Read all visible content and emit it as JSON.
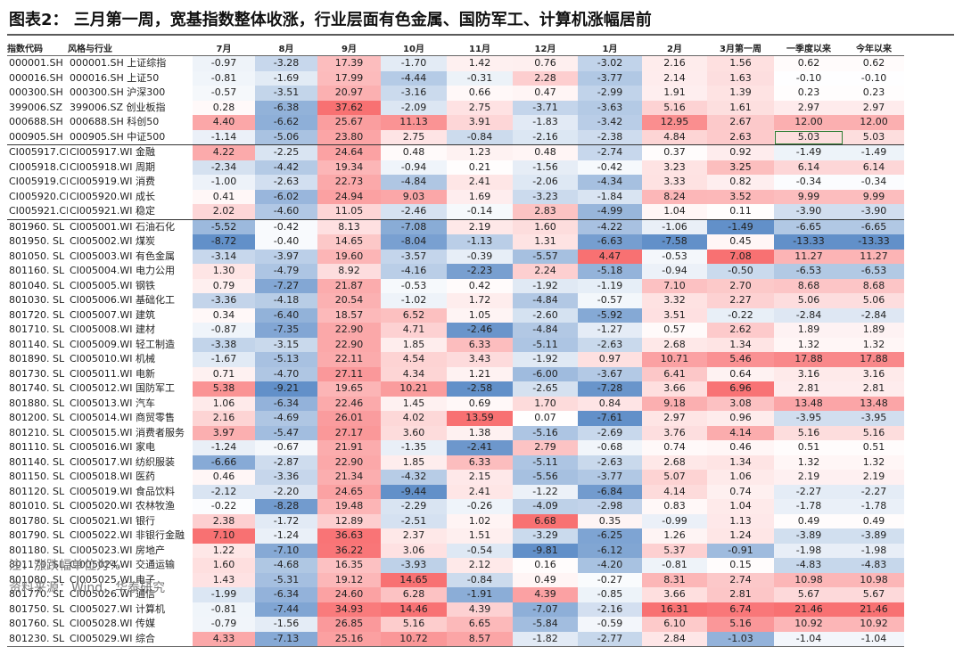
{
  "title": "图表2：  三月第一周，宽基指数整体收涨，行业层面有色金属、国防军工、计算机涨幅居前",
  "headers": [
    "指数代码",
    "风格与行业",
    "7月",
    "8月",
    "9月",
    "10月",
    "11月",
    "12月",
    "1月",
    "2月",
    "3月第一周",
    "一季度以来",
    "今年以来"
  ],
  "rows": [
    {
      "code": "000001.SH",
      "name": "000001.SH 上证综指",
      "values": [
        "-0.97",
        "-3.28",
        "17.39",
        "-1.70",
        "1.42",
        "0.76",
        "-3.02",
        "2.16",
        "1.56",
        "0.62",
        "0.62"
      ]
    },
    {
      "code": "000016.SH",
      "name": "000016.SH 上证50",
      "values": [
        "-0.81",
        "-1.69",
        "17.99",
        "-4.44",
        "-0.31",
        "2.28",
        "-3.77",
        "2.14",
        "1.63",
        "-0.10",
        "-0.10"
      ]
    },
    {
      "code": "000300.SH",
      "name": "000300.SH 沪深300",
      "values": [
        "-0.57",
        "-3.51",
        "20.97",
        "-3.16",
        "0.66",
        "0.47",
        "-2.99",
        "1.91",
        "1.39",
        "0.23",
        "0.23"
      ]
    },
    {
      "code": "399006.SZ",
      "name": "399006.SZ 创业板指",
      "values": [
        "0.28",
        "-6.38",
        "37.62",
        "-2.09",
        "2.75",
        "-3.71",
        "-3.63",
        "5.16",
        "1.61",
        "2.97",
        "2.97"
      ]
    },
    {
      "code": "000688.SH",
      "name": "000688.SH 科创50",
      "values": [
        "4.40",
        "-6.62",
        "25.67",
        "11.13",
        "3.91",
        "-1.83",
        "-3.42",
        "12.95",
        "2.67",
        "12.00",
        "12.00"
      ]
    },
    {
      "code": "000905.SH",
      "name": "000905.SH 中证500",
      "values": [
        "-1.14",
        "-5.06",
        "23.80",
        "2.75",
        "-0.84",
        "-2.16",
        "-2.38",
        "4.84",
        "2.63",
        "5.03",
        "5.03"
      ]
    },
    {
      "code": "CI005917.CI",
      "name": "CI005917.WI 金融",
      "values": [
        "4.22",
        "-2.25",
        "24.64",
        "0.48",
        "1.23",
        "0.48",
        "-2.74",
        "0.37",
        "0.92",
        "-1.49",
        "-1.49"
      ]
    },
    {
      "code": "CI005918.CI",
      "name": "CI005918.WI 周期",
      "values": [
        "-2.34",
        "-4.42",
        "19.34",
        "-0.94",
        "0.21",
        "-1.56",
        "-0.42",
        "3.23",
        "3.25",
        "6.14",
        "6.14"
      ]
    },
    {
      "code": "CI005919.CI",
      "name": "CI005919.WI 消费",
      "values": [
        "-1.00",
        "-2.63",
        "22.73",
        "-4.84",
        "2.41",
        "-2.06",
        "-4.34",
        "3.33",
        "0.82",
        "-0.34",
        "-0.34"
      ]
    },
    {
      "code": "CI005920.CI",
      "name": "CI005920.WI 成长",
      "values": [
        "0.41",
        "-6.02",
        "24.94",
        "9.03",
        "1.69",
        "-3.23",
        "-1.84",
        "8.24",
        "3.52",
        "9.99",
        "9.99"
      ]
    },
    {
      "code": "CI005921.CI",
      "name": "CI005921.WI 稳定",
      "values": [
        "2.02",
        "-4.60",
        "11.05",
        "-2.46",
        "-0.14",
        "2.83",
        "-4.99",
        "1.04",
        "0.11",
        "-3.90",
        "-3.90"
      ]
    },
    {
      "code": "801960. SL",
      "name": "CI005001.WI 石油石化",
      "values": [
        "-5.52",
        "-0.42",
        "8.13",
        "-7.08",
        "2.19",
        "1.60",
        "-4.22",
        "-1.06",
        "-1.49",
        "-6.65",
        "-6.65"
      ]
    },
    {
      "code": "801950. SL",
      "name": "CI005002.WI 煤炭",
      "values": [
        "-8.72",
        "-0.40",
        "14.65",
        "-8.04",
        "-1.13",
        "1.31",
        "-6.63",
        "-7.58",
        "0.45",
        "-13.33",
        "-13.33"
      ]
    },
    {
      "code": "801050. SL",
      "name": "CI005003.WI 有色金属",
      "values": [
        "-3.14",
        "-3.97",
        "19.60",
        "-3.57",
        "-0.39",
        "-5.57",
        "4.47",
        "-0.53",
        "7.08",
        "11.27",
        "11.27"
      ]
    },
    {
      "code": "801160. SL",
      "name": "CI005004.WI 电力公用",
      "values": [
        "1.30",
        "-4.79",
        "8.92",
        "-4.16",
        "-2.23",
        "2.24",
        "-5.18",
        "-0.94",
        "-0.50",
        "-6.53",
        "-6.53"
      ]
    },
    {
      "code": "801040. SL",
      "name": "CI005005.WI 钢铁",
      "values": [
        "0.79",
        "-7.27",
        "21.87",
        "-0.53",
        "0.42",
        "-1.92",
        "-1.19",
        "7.10",
        "2.70",
        "8.68",
        "8.68"
      ]
    },
    {
      "code": "801030. SL",
      "name": "CI005006.WI 基础化工",
      "values": [
        "-3.36",
        "-4.18",
        "20.54",
        "-1.02",
        "1.72",
        "-4.84",
        "-0.57",
        "3.32",
        "2.27",
        "5.06",
        "5.06"
      ]
    },
    {
      "code": "801720. SL",
      "name": "CI005007.WI 建筑",
      "values": [
        "0.34",
        "-6.40",
        "18.57",
        "6.52",
        "1.05",
        "-2.60",
        "-5.92",
        "3.51",
        "-0.22",
        "-2.84",
        "-2.84"
      ]
    },
    {
      "code": "801710. SL",
      "name": "CI005008.WI 建材",
      "values": [
        "-0.87",
        "-7.35",
        "22.90",
        "4.71",
        "-2.46",
        "-4.84",
        "-1.27",
        "0.57",
        "2.62",
        "1.89",
        "1.89"
      ]
    },
    {
      "code": "801140. SL",
      "name": "CI005009.WI 轻工制造",
      "values": [
        "-3.38",
        "-3.15",
        "22.90",
        "1.85",
        "6.33",
        "-5.11",
        "-2.63",
        "2.68",
        "1.34",
        "1.32",
        "1.32"
      ]
    },
    {
      "code": "801890. SL",
      "name": "CI005010.WI 机械",
      "values": [
        "-1.67",
        "-5.13",
        "22.11",
        "4.54",
        "3.43",
        "-1.92",
        "0.97",
        "10.71",
        "5.46",
        "17.88",
        "17.88"
      ]
    },
    {
      "code": "801730. SL",
      "name": "CI005011.WI 电新",
      "values": [
        "0.71",
        "-4.70",
        "27.11",
        "4.34",
        "1.21",
        "-6.00",
        "-3.67",
        "6.41",
        "0.64",
        "3.16",
        "3.16"
      ]
    },
    {
      "code": "801740. SL",
      "name": "CI005012.WI 国防军工",
      "values": [
        "5.38",
        "-9.21",
        "19.65",
        "10.21",
        "-2.58",
        "-2.65",
        "-7.28",
        "3.66",
        "6.96",
        "2.81",
        "2.81"
      ]
    },
    {
      "code": "801880. SL",
      "name": "CI005013.WI 汽车",
      "values": [
        "1.06",
        "-6.34",
        "22.46",
        "1.45",
        "0.69",
        "1.70",
        "0.84",
        "9.18",
        "3.08",
        "13.48",
        "13.48"
      ]
    },
    {
      "code": "801200. SL",
      "name": "CI005014.WI 商贸零售",
      "values": [
        "2.16",
        "-4.69",
        "26.01",
        "4.02",
        "13.59",
        "0.07",
        "-7.61",
        "2.97",
        "0.96",
        "-3.95",
        "-3.95"
      ]
    },
    {
      "code": "801210. SL",
      "name": "CI005015.WI 消费者服务",
      "values": [
        "3.97",
        "-5.47",
        "27.17",
        "3.60",
        "1.38",
        "-5.16",
        "-2.69",
        "3.76",
        "4.14",
        "5.16",
        "5.16"
      ]
    },
    {
      "code": "801110. SL",
      "name": "CI005016.WI 家电",
      "values": [
        "-1.24",
        "-0.67",
        "21.91",
        "-1.35",
        "-2.41",
        "2.79",
        "-0.68",
        "0.74",
        "0.46",
        "0.51",
        "0.51"
      ]
    },
    {
      "code": "801140. SL",
      "name": "CI005017.WI 纺织服装",
      "values": [
        "-6.66",
        "-2.87",
        "22.90",
        "1.85",
        "6.33",
        "-5.11",
        "-2.63",
        "2.68",
        "1.34",
        "1.32",
        "1.32"
      ]
    },
    {
      "code": "801150. SL",
      "name": "CI005018.WI 医药",
      "values": [
        "0.46",
        "-3.36",
        "21.34",
        "-4.32",
        "2.15",
        "-5.56",
        "-3.77",
        "5.07",
        "1.06",
        "2.19",
        "2.19"
      ]
    },
    {
      "code": "801120. SL",
      "name": "CI005019.WI 食品饮料",
      "values": [
        "-2.12",
        "-2.20",
        "24.65",
        "-9.44",
        "2.41",
        "-1.22",
        "-6.84",
        "4.14",
        "0.74",
        "-2.27",
        "-2.27"
      ]
    },
    {
      "code": "801010. SL",
      "name": "CI005020.WI 农林牧渔",
      "values": [
        "-0.22",
        "-8.28",
        "19.48",
        "-2.29",
        "-0.26",
        "-4.09",
        "-2.98",
        "0.83",
        "1.04",
        "-1.78",
        "-1.78"
      ]
    },
    {
      "code": "801780. SL",
      "name": "CI005021.WI 银行",
      "values": [
        "2.38",
        "-1.72",
        "12.89",
        "-2.51",
        "1.02",
        "6.68",
        "0.35",
        "-0.99",
        "1.13",
        "0.49",
        "0.49"
      ]
    },
    {
      "code": "801790. SL",
      "name": "CI005022.WI 非银行金融",
      "values": [
        "7.10",
        "-1.24",
        "36.63",
        "2.37",
        "1.51",
        "-3.29",
        "-6.25",
        "1.26",
        "1.24",
        "-3.89",
        "-3.89"
      ]
    },
    {
      "code": "801180. SL",
      "name": "CI005023.WI 房地产",
      "values": [
        "1.22",
        "-7.10",
        "36.22",
        "3.06",
        "-0.54",
        "-9.81",
        "-6.12",
        "5.37",
        "-0.91",
        "-1.98",
        "-1.98"
      ]
    },
    {
      "code": "801170. SL",
      "name": "CI005024.WI 交通运输",
      "values": [
        "1.60",
        "-4.68",
        "16.35",
        "-3.93",
        "2.12",
        "0.16",
        "-4.20",
        "-0.81",
        "0.15",
        "-4.83",
        "-4.83"
      ]
    },
    {
      "code": "801080. SL",
      "name": "CI005025.WI 电子",
      "values": [
        "1.43",
        "-5.31",
        "19.12",
        "14.65",
        "-0.84",
        "0.49",
        "-0.27",
        "8.31",
        "2.74",
        "10.98",
        "10.98"
      ]
    },
    {
      "code": "801770. SL",
      "name": "CI005026.WI 通信",
      "values": [
        "-1.99",
        "-6.34",
        "24.60",
        "6.28",
        "-1.91",
        "4.39",
        "-0.85",
        "3.66",
        "2.81",
        "5.67",
        "5.67"
      ]
    },
    {
      "code": "801750. SL",
      "name": "CI005027.WI 计算机",
      "values": [
        "-0.81",
        "-7.44",
        "34.93",
        "14.46",
        "4.39",
        "-7.07",
        "-2.16",
        "16.31",
        "6.74",
        "21.46",
        "21.46"
      ]
    },
    {
      "code": "801760. SL",
      "name": "CI005028.WI 传媒",
      "values": [
        "-0.79",
        "-1.56",
        "26.85",
        "5.16",
        "6.65",
        "-5.84",
        "-0.59",
        "6.10",
        "5.16",
        "10.92",
        "10.92"
      ]
    },
    {
      "code": "801230. SL",
      "name": "CI005029.WI 综合",
      "values": [
        "4.33",
        "-7.13",
        "25.16",
        "10.72",
        "8.57",
        "-1.82",
        "-2.77",
        "2.84",
        "-1.03",
        "-1.04",
        "-1.04"
      ]
    }
  ],
  "note": "注：涨跌幅单位为%",
  "source": "资料来源：Wind，华泰研究",
  "colors": {
    "positive": "#f8696b",
    "negative": "#5a8ac6",
    "neutral": "#ffffff"
  }
}
